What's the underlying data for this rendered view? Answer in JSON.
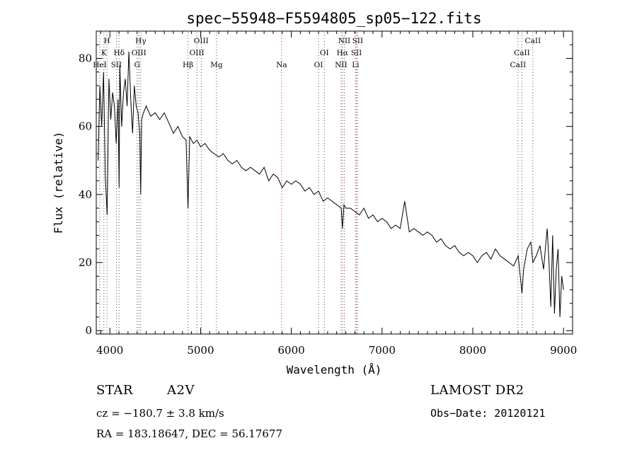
{
  "chart_data": {
    "type": "line",
    "title": "spec−55948−F5594805_sp05−122.fits",
    "xlabel": "Wavelength (Å)",
    "ylabel": "Flux (relative)",
    "xlim": [
      3850,
      9100
    ],
    "ylim": [
      -1,
      88
    ],
    "xticks": [
      4000,
      5000,
      6000,
      7000,
      8000,
      9000
    ],
    "yticks": [
      0,
      20,
      40,
      60,
      80
    ],
    "grid": false,
    "series": [
      {
        "x": [
          3870,
          3890,
          3910,
          3930,
          3950,
          3970,
          3990,
          4010,
          4030,
          4050,
          4070,
          4090,
          4102,
          4110,
          4130,
          4150,
          4170,
          4190,
          4210,
          4230,
          4250,
          4270,
          4290,
          4310,
          4330,
          4340,
          4350,
          4370,
          4400,
          4450,
          4500,
          4550,
          4600,
          4650,
          4700,
          4750,
          4800,
          4840,
          4861,
          4880,
          4920,
          4960,
          5000,
          5050,
          5100,
          5150,
          5200,
          5250,
          5300,
          5350,
          5400,
          5450,
          5500,
          5550,
          5600,
          5650,
          5700,
          5750,
          5800,
          5850,
          5900,
          5950,
          6000,
          6050,
          6100,
          6150,
          6200,
          6250,
          6300,
          6350,
          6400,
          6450,
          6500,
          6550,
          6563,
          6580,
          6600,
          6650,
          6700,
          6750,
          6800,
          6850,
          6900,
          6950,
          7000,
          7050,
          7100,
          7150,
          7200,
          7250,
          7300,
          7350,
          7400,
          7450,
          7500,
          7550,
          7600,
          7650,
          7700,
          7750,
          7800,
          7850,
          7900,
          7950,
          8000,
          8050,
          8100,
          8150,
          8200,
          8250,
          8300,
          8350,
          8400,
          8450,
          8500,
          8542,
          8560,
          8600,
          8640,
          8662,
          8700,
          8740,
          8780,
          8800,
          8820,
          8840,
          8860,
          8880,
          8900,
          8920,
          8940,
          8960,
          8980,
          9000
        ],
        "y": [
          50,
          72,
          60,
          76,
          45,
          34,
          74,
          62,
          70,
          66,
          55,
          68,
          42,
          78,
          60,
          70,
          74,
          66,
          82,
          68,
          58,
          72,
          66,
          64,
          58,
          40,
          62,
          64,
          66,
          63,
          64,
          62,
          64,
          61,
          58,
          60,
          57,
          56,
          36,
          57,
          55,
          56,
          54,
          55,
          53,
          52,
          51,
          52,
          50,
          49,
          50,
          48,
          47,
          48,
          47,
          46,
          48,
          44,
          46,
          45,
          42,
          44,
          43,
          44,
          43,
          41,
          42,
          40,
          41,
          38,
          39,
          38,
          37,
          36,
          30,
          37,
          36,
          36,
          35,
          34,
          36,
          33,
          34,
          32,
          33,
          32,
          30,
          31,
          30,
          38,
          29,
          30,
          29,
          28,
          29,
          28,
          26,
          27,
          25,
          24,
          25,
          23,
          22,
          23,
          22,
          20,
          22,
          23,
          21,
          24,
          22,
          21,
          20,
          19,
          22,
          11,
          18,
          24,
          26,
          20,
          22,
          25,
          18,
          24,
          30,
          20,
          7,
          28,
          5,
          18,
          24,
          4,
          16,
          12
        ]
      }
    ],
    "line_marks": [
      {
        "wl": 3889,
        "labels": [
          "HeI"
        ]
      },
      {
        "wl": 3934,
        "labels": [
          "K"
        ]
      },
      {
        "wl": 3968,
        "labels": [
          "H"
        ]
      },
      {
        "wl": 4102,
        "labels": [
          "Hδ"
        ]
      },
      {
        "wl": 4072,
        "labels": [
          "SII"
        ]
      },
      {
        "wl": 4300,
        "labels": [
          "G"
        ]
      },
      {
        "wl": 4320,
        "labels": [
          "OIII"
        ]
      },
      {
        "wl": 4340,
        "labels": [
          "Hγ"
        ]
      },
      {
        "wl": 4861,
        "labels": [
          "Hβ"
        ]
      },
      {
        "wl": 4959,
        "labels": [
          "OIII"
        ]
      },
      {
        "wl": 5007,
        "labels": [
          "OIII"
        ]
      },
      {
        "wl": 5175,
        "labels": [
          "Mg"
        ]
      },
      {
        "wl": 5893,
        "labels": [
          "Na"
        ],
        "color": "#d02020"
      },
      {
        "wl": 6300,
        "labels": [
          "OI"
        ]
      },
      {
        "wl": 6364,
        "labels": [
          "OI"
        ]
      },
      {
        "wl": 6548,
        "labels": [
          "NII"
        ]
      },
      {
        "wl": 6563,
        "labels": [
          "Hα"
        ],
        "color": "#d02020"
      },
      {
        "wl": 6584,
        "labels": [
          "NII"
        ]
      },
      {
        "wl": 6708,
        "labels": [
          "Li"
        ],
        "color": "#d02020"
      },
      {
        "wl": 6717,
        "labels": [
          "SII"
        ]
      },
      {
        "wl": 6731,
        "labels": [
          "SII"
        ]
      },
      {
        "wl": 8498,
        "labels": [
          "CaII"
        ]
      },
      {
        "wl": 8542,
        "labels": [
          "CaII"
        ]
      },
      {
        "wl": 8662,
        "labels": [
          "CaII"
        ]
      }
    ]
  },
  "info": {
    "class_label": "STAR",
    "subclass": "A2V",
    "survey": "LAMOST DR2",
    "cz": "cz = −180.7 ± 3.8 km/s",
    "obs_date": "Obs−Date: 20120121",
    "radec": "RA = 183.18647, DEC =  56.17677"
  },
  "colors": {
    "line_dot_default": "#555555",
    "line_dot_red": "#d02020"
  }
}
